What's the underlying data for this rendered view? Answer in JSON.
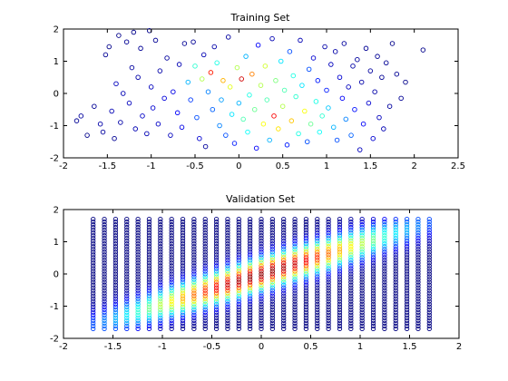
{
  "chart_data": [
    {
      "type": "scatter",
      "title": "Training Set",
      "xlabel": "",
      "ylabel": "",
      "xlim": [
        -2,
        2.5
      ],
      "ylim": [
        -2,
        2
      ],
      "xticks": [
        -2,
        -1.5,
        -1,
        -0.5,
        0,
        0.5,
        1,
        1.5,
        2,
        2.5
      ],
      "yticks": [
        -2,
        -1,
        0,
        1,
        2
      ],
      "xtick_labels": [
        "-2",
        "-1.5",
        "-1",
        "-0.5",
        "0",
        "0.5",
        "1",
        "1.5",
        "2",
        "2.5"
      ],
      "ytick_labels": [
        "-2",
        "-1",
        "0",
        "1",
        "2"
      ],
      "grid": false,
      "legend": "none",
      "marker": "open circle",
      "colormap": "jet",
      "color_range": [
        0,
        1
      ],
      "points": [
        [
          -1.85,
          -0.85,
          0.02
        ],
        [
          -1.8,
          -0.7,
          0.03
        ],
        [
          -1.73,
          -1.3,
          0.01
        ],
        [
          -1.65,
          -0.4,
          0.02
        ],
        [
          -1.58,
          -0.95,
          0.04
        ],
        [
          -1.55,
          -1.2,
          0.03
        ],
        [
          -1.52,
          1.2,
          0.02
        ],
        [
          -1.48,
          1.45,
          0.01
        ],
        [
          -1.45,
          -0.55,
          0.05
        ],
        [
          -1.42,
          -1.4,
          0.02
        ],
        [
          -1.4,
          0.3,
          0.06
        ],
        [
          -1.37,
          1.8,
          0.01
        ],
        [
          -1.35,
          -0.9,
          0.04
        ],
        [
          -1.32,
          0.0,
          0.05
        ],
        [
          -1.28,
          1.6,
          0.02
        ],
        [
          -1.25,
          -0.3,
          0.06
        ],
        [
          -1.22,
          0.8,
          0.03
        ],
        [
          -1.2,
          1.9,
          0.01
        ],
        [
          -1.18,
          -1.1,
          0.05
        ],
        [
          -1.15,
          0.5,
          0.04
        ],
        [
          -1.12,
          1.4,
          0.02
        ],
        [
          -1.1,
          -0.7,
          0.07
        ],
        [
          -1.05,
          -1.25,
          0.05
        ],
        [
          -1.02,
          1.95,
          0.01
        ],
        [
          -1.0,
          0.2,
          0.06
        ],
        [
          -0.98,
          -0.45,
          0.08
        ],
        [
          -0.95,
          1.65,
          0.02
        ],
        [
          -0.92,
          -0.95,
          0.07
        ],
        [
          -0.9,
          0.7,
          0.04
        ],
        [
          -0.85,
          -0.15,
          0.09
        ],
        [
          -0.82,
          1.1,
          0.03
        ],
        [
          -0.78,
          -1.3,
          0.06
        ],
        [
          -0.75,
          0.05,
          0.1
        ],
        [
          -0.7,
          -0.6,
          0.12
        ],
        [
          -0.68,
          0.9,
          0.05
        ],
        [
          -0.65,
          -1.05,
          0.1
        ],
        [
          -0.62,
          1.55,
          0.02
        ],
        [
          -0.58,
          0.35,
          0.3
        ],
        [
          -0.55,
          -0.2,
          0.18
        ],
        [
          -0.52,
          1.6,
          0.02
        ],
        [
          -0.5,
          0.85,
          0.42
        ],
        [
          -0.48,
          -0.75,
          0.2
        ],
        [
          -0.45,
          -1.4,
          0.08
        ],
        [
          -0.42,
          0.45,
          0.55
        ],
        [
          -0.4,
          1.2,
          0.05
        ],
        [
          -0.38,
          -1.65,
          0.03
        ],
        [
          -0.35,
          0.05,
          0.25
        ],
        [
          -0.32,
          0.65,
          0.85
        ],
        [
          -0.3,
          -0.5,
          0.22
        ],
        [
          -0.28,
          1.45,
          0.04
        ],
        [
          -0.25,
          0.95,
          0.4
        ],
        [
          -0.22,
          -1.0,
          0.25
        ],
        [
          -0.2,
          -0.2,
          0.28
        ],
        [
          -0.18,
          0.4,
          0.7
        ],
        [
          -0.15,
          -1.3,
          0.2
        ],
        [
          -0.12,
          1.75,
          0.03
        ],
        [
          -0.1,
          0.2,
          0.6
        ],
        [
          -0.08,
          -0.65,
          0.35
        ],
        [
          -0.05,
          -1.55,
          0.15
        ],
        [
          -0.02,
          0.8,
          0.55
        ],
        [
          0.0,
          -0.3,
          0.3
        ],
        [
          0.03,
          0.45,
          0.92
        ],
        [
          0.05,
          -0.8,
          0.45
        ],
        [
          0.08,
          1.15,
          0.3
        ],
        [
          0.1,
          -1.2,
          0.38
        ],
        [
          0.12,
          -0.05,
          0.4
        ],
        [
          0.15,
          0.6,
          0.75
        ],
        [
          0.18,
          -0.5,
          0.48
        ],
        [
          0.2,
          -1.7,
          0.12
        ],
        [
          0.22,
          1.5,
          0.12
        ],
        [
          0.25,
          0.25,
          0.55
        ],
        [
          0.28,
          -0.95,
          0.62
        ],
        [
          0.3,
          0.85,
          0.58
        ],
        [
          0.32,
          -0.2,
          0.45
        ],
        [
          0.35,
          -1.45,
          0.3
        ],
        [
          0.38,
          1.7,
          0.05
        ],
        [
          0.4,
          -0.7,
          0.88
        ],
        [
          0.42,
          0.4,
          0.5
        ],
        [
          0.45,
          -1.1,
          0.65
        ],
        [
          0.48,
          1.0,
          0.35
        ],
        [
          0.5,
          -0.4,
          0.55
        ],
        [
          0.52,
          0.1,
          0.45
        ],
        [
          0.55,
          -1.6,
          0.15
        ],
        [
          0.58,
          1.3,
          0.2
        ],
        [
          0.6,
          -0.85,
          0.68
        ],
        [
          0.62,
          0.55,
          0.4
        ],
        [
          0.65,
          -0.1,
          0.42
        ],
        [
          0.68,
          -1.25,
          0.4
        ],
        [
          0.7,
          1.65,
          0.05
        ],
        [
          0.72,
          0.25,
          0.35
        ],
        [
          0.75,
          -0.55,
          0.62
        ],
        [
          0.78,
          -1.5,
          0.2
        ],
        [
          0.8,
          0.75,
          0.2
        ],
        [
          0.82,
          -0.95,
          0.48
        ],
        [
          0.85,
          1.1,
          0.08
        ],
        [
          0.88,
          -0.25,
          0.4
        ],
        [
          0.9,
          0.4,
          0.15
        ],
        [
          0.92,
          -1.2,
          0.38
        ],
        [
          0.95,
          -0.7,
          0.42
        ],
        [
          0.98,
          1.45,
          0.04
        ],
        [
          1.0,
          0.1,
          0.15
        ],
        [
          1.02,
          -0.45,
          0.32
        ],
        [
          1.05,
          0.9,
          0.06
        ],
        [
          1.08,
          -1.05,
          0.3
        ],
        [
          1.1,
          1.3,
          0.04
        ],
        [
          1.12,
          -1.45,
          0.2
        ],
        [
          1.15,
          0.5,
          0.08
        ],
        [
          1.18,
          -0.15,
          0.12
        ],
        [
          1.2,
          1.55,
          0.03
        ],
        [
          1.22,
          -0.8,
          0.25
        ],
        [
          1.25,
          0.2,
          0.06
        ],
        [
          1.28,
          -1.3,
          0.22
        ],
        [
          1.3,
          0.85,
          0.04
        ],
        [
          1.32,
          -0.5,
          0.14
        ],
        [
          1.35,
          1.05,
          0.03
        ],
        [
          1.38,
          -1.75,
          0.06
        ],
        [
          1.4,
          0.35,
          0.04
        ],
        [
          1.42,
          -0.95,
          0.12
        ],
        [
          1.45,
          1.4,
          0.02
        ],
        [
          1.48,
          -0.3,
          0.08
        ],
        [
          1.5,
          0.7,
          0.03
        ],
        [
          1.53,
          -1.4,
          0.08
        ],
        [
          1.55,
          0.05,
          0.04
        ],
        [
          1.58,
          1.15,
          0.02
        ],
        [
          1.6,
          -0.75,
          0.06
        ],
        [
          1.63,
          0.5,
          0.02
        ],
        [
          1.65,
          -1.1,
          0.05
        ],
        [
          1.68,
          0.95,
          0.02
        ],
        [
          1.72,
          -0.4,
          0.03
        ],
        [
          1.75,
          1.55,
          0.01
        ],
        [
          1.8,
          0.6,
          0.02
        ],
        [
          1.85,
          -0.15,
          0.02
        ],
        [
          1.9,
          0.35,
          0.01
        ],
        [
          2.1,
          1.35,
          0.01
        ]
      ]
    },
    {
      "type": "scatter",
      "title": "Validation Set",
      "xlabel": "",
      "ylabel": "",
      "xlim": [
        -2,
        2
      ],
      "ylim": [
        -2,
        2
      ],
      "xticks": [
        -2,
        -1.5,
        -1,
        -0.5,
        0,
        0.5,
        1,
        1.5,
        2
      ],
      "yticks": [
        -2,
        -1,
        0,
        1,
        2
      ],
      "xtick_labels": [
        "-2",
        "-1.5",
        "-1",
        "-0.5",
        "0",
        "0.5",
        "1",
        "1.5",
        "2"
      ],
      "ytick_labels": [
        "-2",
        "-1",
        "0",
        "1",
        "2"
      ],
      "grid": false,
      "legend": "none",
      "marker": "open circle",
      "colormap": "jet",
      "color_range": [
        0,
        1
      ],
      "grid_points": {
        "x_from": -1.7,
        "x_to": 1.7,
        "x_count": 31,
        "y_from": -1.7,
        "y_to": 1.7,
        "y_count": 41,
        "value_shape": "gaussian ridge along y = x",
        "value_peak": 1.0
      }
    }
  ]
}
